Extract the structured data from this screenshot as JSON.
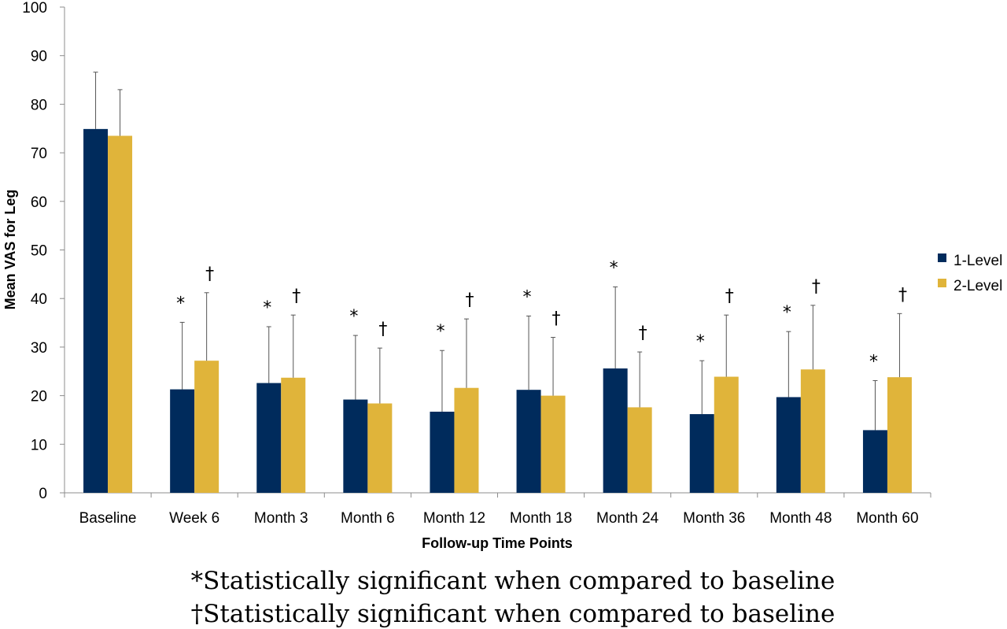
{
  "chart_data": {
    "type": "bar",
    "ylabel": "Mean VAS for Leg",
    "xlabel": "Follow-up Time Points",
    "ylim": [
      0,
      100
    ],
    "yticks": [
      0,
      10,
      20,
      30,
      40,
      50,
      60,
      70,
      80,
      90,
      100
    ],
    "grid": false,
    "legend_position": "right",
    "categories": [
      "Baseline",
      "Week 6",
      "Month 3",
      "Month 6",
      "Month 12",
      "Month 18",
      "Month 24",
      "Month 36",
      "Month 48",
      "Month 60"
    ],
    "series": [
      {
        "name": "1-Level",
        "color": "#002b5c",
        "values": [
          74.9,
          21.3,
          22.6,
          19.2,
          16.7,
          21.2,
          25.6,
          16.2,
          19.7,
          12.9
        ],
        "error_upper": [
          86.6,
          35.1,
          34.2,
          32.4,
          29.3,
          36.4,
          42.4,
          27.2,
          33.2,
          23.1
        ],
        "marker": [
          "",
          "*",
          "*",
          "*",
          "*",
          "*",
          "*",
          "*",
          "*",
          "*"
        ]
      },
      {
        "name": "2-Level",
        "color": "#e0b43a",
        "values": [
          73.5,
          27.2,
          23.7,
          18.4,
          21.6,
          20.0,
          17.6,
          23.9,
          25.4,
          23.8
        ],
        "error_upper": [
          83.0,
          41.2,
          36.6,
          29.8,
          35.8,
          32.0,
          29.0,
          36.6,
          38.6,
          36.9
        ],
        "marker": [
          "",
          "†",
          "†",
          "†",
          "†",
          "†",
          "†",
          "†",
          "†",
          "†"
        ]
      }
    ]
  },
  "footnotes": [
    "*Statistically significant when compared to baseline",
    "†Statistically significant when compared to baseline"
  ]
}
